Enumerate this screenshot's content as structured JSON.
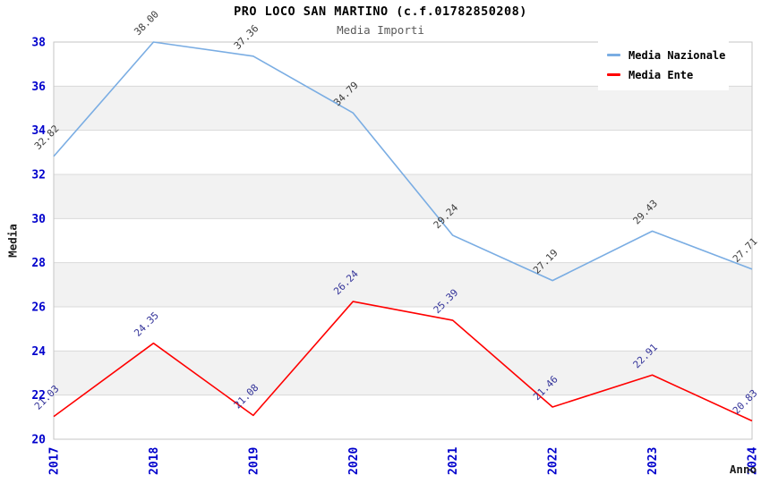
{
  "chart_data": {
    "type": "line",
    "title": "PRO LOCO SAN MARTINO (c.f.01782850208)",
    "subtitle": "Media Importi",
    "xlabel": "Anno",
    "ylabel": "Media",
    "categories": [
      "2017",
      "2018",
      "2019",
      "2020",
      "2021",
      "2022",
      "2023",
      "2024"
    ],
    "yticks": [
      20,
      22,
      24,
      26,
      28,
      30,
      32,
      34,
      36,
      38
    ],
    "ylim": [
      20,
      38
    ],
    "grid": "horizontal gridlines with alternating gray/white bands",
    "legend_position": "top-right",
    "series": [
      {
        "name": "Media Nazionale",
        "color": "#7aade3",
        "label_color": "#3d3d3d",
        "values": [
          32.82,
          38.0,
          37.36,
          34.79,
          29.24,
          27.19,
          29.43,
          27.71
        ]
      },
      {
        "name": "Media Ente",
        "color": "#ff0000",
        "label_color": "#333399",
        "values": [
          21.03,
          24.35,
          21.08,
          26.24,
          25.39,
          21.46,
          22.91,
          20.83
        ]
      }
    ],
    "colors": {
      "background": "#ffffff",
      "band_gray": "#f2f2f2",
      "gridline": "#d9d9d9",
      "plot_border": "#c6c6c6",
      "tick_label": "#0000cc",
      "title": "#000000",
      "subtitle": "#5a5a5a",
      "axis_title": "#1a1a1a"
    }
  }
}
